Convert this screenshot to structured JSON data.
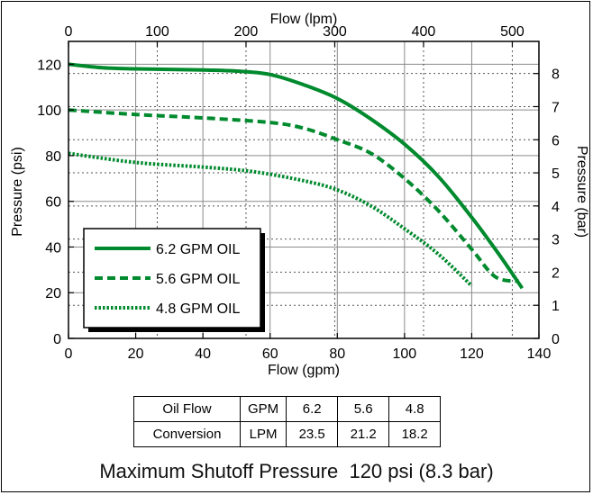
{
  "chart_data": {
    "type": "line",
    "title": "",
    "xlabel": "Flow (gpm)",
    "ylabel": "Pressure (psi)",
    "x2label": "Flow (lpm)",
    "y2label": "Pressure (bar)",
    "xlim": [
      0,
      140
    ],
    "ylim": [
      0,
      130
    ],
    "x2lim": [
      0,
      530
    ],
    "y2lim": [
      0,
      8.97
    ],
    "x_ticks": [
      0,
      20,
      40,
      60,
      80,
      100,
      120,
      140
    ],
    "y_ticks": [
      0,
      20,
      40,
      60,
      80,
      100,
      120
    ],
    "x2_ticks": [
      0,
      100,
      200,
      300,
      400,
      500
    ],
    "y2_ticks": [
      0,
      1,
      2,
      3,
      4,
      5,
      6,
      7,
      8
    ],
    "grid": true,
    "legend_position": "lower-left",
    "series": [
      {
        "name": "6.2 GPM OIL",
        "color": "#008a2e",
        "style": "solid",
        "points": [
          [
            0,
            120
          ],
          [
            10,
            118.5
          ],
          [
            20,
            118
          ],
          [
            40,
            117.5
          ],
          [
            50,
            117
          ],
          [
            60,
            115.5
          ],
          [
            70,
            111
          ],
          [
            80,
            105
          ],
          [
            90,
            96
          ],
          [
            100,
            85
          ],
          [
            110,
            71
          ],
          [
            120,
            53
          ],
          [
            128,
            37
          ],
          [
            135,
            22
          ]
        ]
      },
      {
        "name": "5.6 GPM OIL",
        "color": "#008a2e",
        "style": "dashed",
        "points": [
          [
            0,
            100
          ],
          [
            20,
            98
          ],
          [
            40,
            96.5
          ],
          [
            60,
            94.5
          ],
          [
            70,
            92
          ],
          [
            80,
            87
          ],
          [
            90,
            81
          ],
          [
            100,
            70
          ],
          [
            110,
            56
          ],
          [
            120,
            39
          ],
          [
            127,
            27
          ],
          [
            134,
            25
          ]
        ]
      },
      {
        "name": "4.8 GPM OIL",
        "color": "#008a2e",
        "style": "dotted",
        "points": [
          [
            0,
            81
          ],
          [
            20,
            77
          ],
          [
            40,
            75
          ],
          [
            55,
            73
          ],
          [
            70,
            69
          ],
          [
            80,
            65
          ],
          [
            90,
            58
          ],
          [
            100,
            48
          ],
          [
            110,
            37
          ],
          [
            120,
            23
          ]
        ]
      }
    ]
  },
  "conversion_table": {
    "label_line1": "Oil Flow",
    "label_line2": "Conversion",
    "gpm_label": "GPM",
    "lpm_label": "LPM",
    "gpm_values": [
      "6.2",
      "5.6",
      "4.8"
    ],
    "lpm_values": [
      "23.5",
      "21.2",
      "18.2"
    ]
  },
  "footer": "Maximum Shutoff Pressure  120 psi (8.3 bar)"
}
